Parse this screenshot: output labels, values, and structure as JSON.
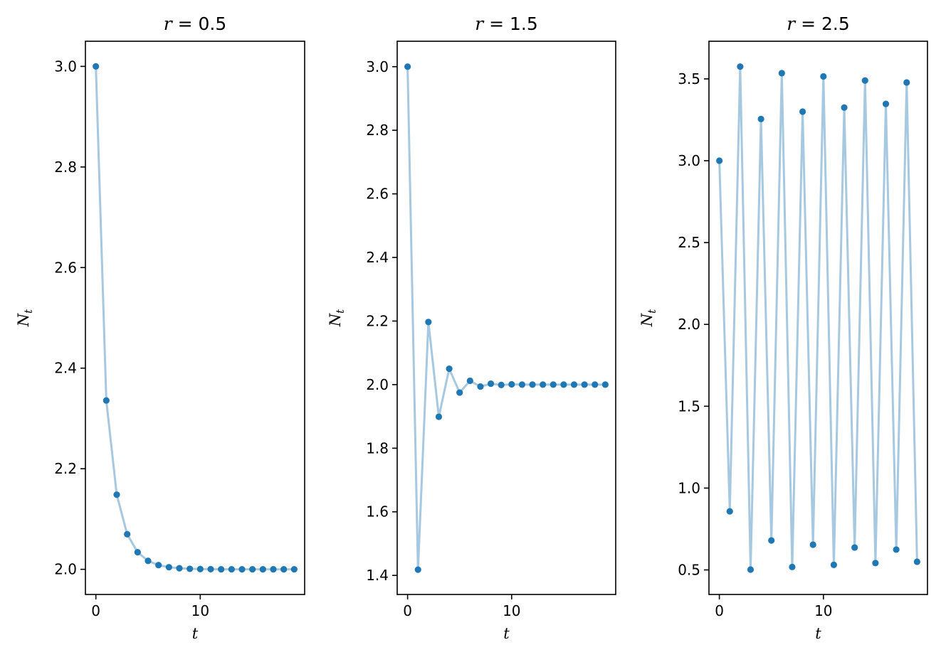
{
  "chart_data": [
    {
      "type": "line",
      "title_var": "r",
      "title_value": "0.5",
      "xlabel": "t",
      "ylabel": "N",
      "ylabel_sub": "t",
      "xlim": [
        -1,
        20
      ],
      "ylim": [
        1.95,
        3.05
      ],
      "xticks": [
        0,
        10
      ],
      "xtick_labels": [
        "0",
        "10"
      ],
      "yticks": [
        2.0,
        2.2,
        2.4,
        2.6,
        2.8,
        3.0
      ],
      "ytick_labels": [
        "2.0",
        "2.2",
        "2.4",
        "2.6",
        "2.8",
        "3.0"
      ],
      "grid": false,
      "line_color": "#a6c8e0",
      "marker_color": "#1f77b4",
      "x": [
        0,
        1,
        2,
        3,
        4,
        5,
        6,
        7,
        8,
        9,
        10,
        11,
        12,
        13,
        14,
        15,
        16,
        17,
        18,
        19
      ],
      "y": [
        3.0,
        2.3357,
        2.1484,
        2.0698,
        2.0339,
        2.0168,
        2.0084,
        2.0042,
        2.0021,
        2.001,
        2.0005,
        2.0003,
        2.0001,
        2.0001,
        2.0,
        2.0,
        2.0,
        2.0,
        2.0,
        2.0
      ]
    },
    {
      "type": "line",
      "title_var": "r",
      "title_value": "1.5",
      "xlabel": "t",
      "ylabel": "N",
      "ylabel_sub": "t",
      "xlim": [
        -1,
        20
      ],
      "ylim": [
        1.34,
        3.08
      ],
      "xticks": [
        0,
        10
      ],
      "xtick_labels": [
        "0",
        "10"
      ],
      "yticks": [
        1.4,
        1.6,
        1.8,
        2.0,
        2.2,
        2.4,
        2.6,
        2.8,
        3.0
      ],
      "ytick_labels": [
        "1.4",
        "1.6",
        "1.8",
        "2.0",
        "2.2",
        "2.4",
        "2.6",
        "2.8",
        "3.0"
      ],
      "grid": false,
      "line_color": "#a6c8e0",
      "marker_color": "#1f77b4",
      "x": [
        0,
        1,
        2,
        3,
        4,
        5,
        6,
        7,
        8,
        9,
        10,
        11,
        12,
        13,
        14,
        15,
        16,
        17,
        18,
        19
      ],
      "y": [
        3.0,
        1.418,
        2.197,
        1.899,
        2.05,
        1.975,
        2.012,
        1.994,
        2.003,
        1.999,
        2.001,
        2.0,
        2.0,
        2.0,
        2.0,
        2.0,
        2.0,
        2.0,
        2.0,
        2.0
      ]
    },
    {
      "type": "line",
      "title_var": "r",
      "title_value": "2.5",
      "xlabel": "t",
      "ylabel": "N",
      "ylabel_sub": "t",
      "xlim": [
        -1,
        20
      ],
      "ylim": [
        0.35,
        3.73
      ],
      "xticks": [
        0,
        10
      ],
      "xtick_labels": [
        "0",
        "10"
      ],
      "yticks": [
        0.5,
        1.0,
        1.5,
        2.0,
        2.5,
        3.0,
        3.5
      ],
      "ytick_labels": [
        "0.5",
        "1.0",
        "1.5",
        "2.0",
        "2.5",
        "3.0",
        "3.5"
      ],
      "grid": false,
      "line_color": "#a6c8e0",
      "marker_color": "#1f77b4",
      "x": [
        0,
        1,
        2,
        3,
        4,
        5,
        6,
        7,
        8,
        9,
        10,
        11,
        12,
        13,
        14,
        15,
        16,
        17,
        18,
        19
      ],
      "y": [
        3.0,
        0.858,
        3.575,
        0.502,
        3.255,
        0.68,
        3.535,
        0.518,
        3.3,
        0.654,
        3.515,
        0.531,
        3.325,
        0.637,
        3.49,
        0.542,
        3.347,
        0.624,
        3.478,
        0.55
      ]
    }
  ]
}
